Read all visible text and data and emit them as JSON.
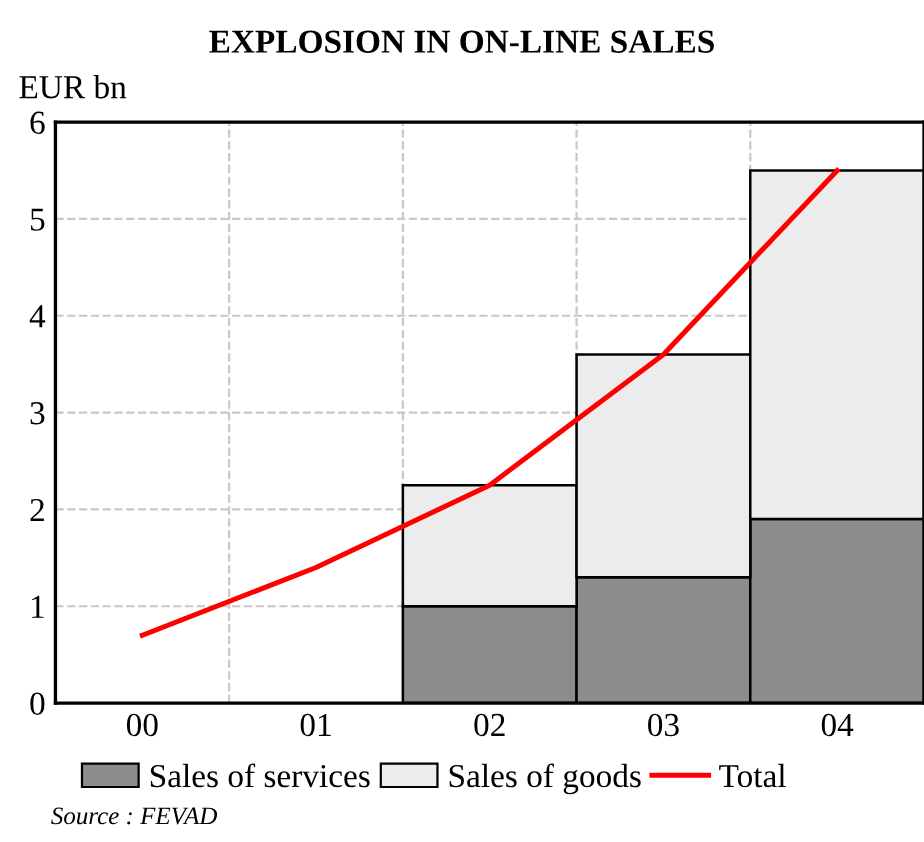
{
  "chart_data": {
    "type": "bar",
    "title": "EXPLOSION IN ON-LINE SALES",
    "ylabel": "EUR bn",
    "categories": [
      "00",
      "01",
      "02",
      "03",
      "04"
    ],
    "stacked": true,
    "series": [
      {
        "name": "Sales of services",
        "color": "#8c8c8c",
        "values": [
          null,
          null,
          1.0,
          1.3,
          1.9
        ]
      },
      {
        "name": "Sales of goods",
        "color": "#ececec",
        "values": [
          null,
          null,
          1.25,
          2.3,
          3.6
        ]
      },
      {
        "name": "Total",
        "type": "line",
        "color": "#ff0000",
        "values": [
          0.7,
          1.4,
          2.25,
          3.6,
          5.5
        ]
      }
    ],
    "ylim": [
      0,
      6
    ],
    "yticks": [
      0,
      1,
      2,
      3,
      4,
      5,
      6
    ],
    "grid": true,
    "legend": "bottom",
    "annotations": [
      "Source : FEVAD"
    ]
  }
}
